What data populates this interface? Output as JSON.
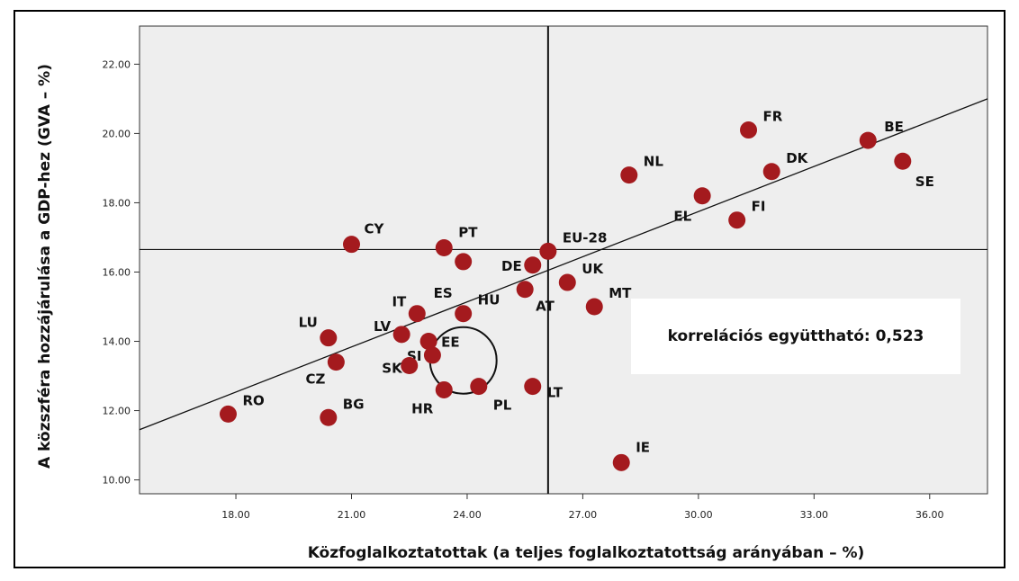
{
  "chart_data": {
    "type": "scatter",
    "xlabel": "Közfoglalkoztatottak (a teljes foglalkoztatottság arányában – %)",
    "ylabel": "A közszféra hozzájárulása a GDP-hez (GVA – %)",
    "xlim": [
      15.5,
      37.5
    ],
    "ylim": [
      9.6,
      23.1
    ],
    "x_ticks": [
      "18.00",
      "21.00",
      "24.00",
      "27.00",
      "30.00",
      "33.00",
      "36.00"
    ],
    "y_ticks": [
      "10.00",
      "12.00",
      "14.00",
      "16.00",
      "18.00",
      "20.00",
      "22.00"
    ],
    "grid": false,
    "reference_lines": {
      "x": 26.1,
      "y": 16.65
    },
    "fit_line": {
      "x": [
        15.5,
        37.5
      ],
      "y": [
        11.45,
        21.0
      ]
    },
    "highlight_circle": {
      "x": 23.9,
      "y": 13.45
    },
    "point_color": "#a41a1e",
    "background_color": "#eeeeee",
    "annotation": "korrelációs együttható: 0,523",
    "points": [
      {
        "label": "FR",
        "x": 31.3,
        "y": 20.1
      },
      {
        "label": "BE",
        "x": 34.4,
        "y": 19.8
      },
      {
        "label": "SE",
        "x": 35.3,
        "y": 19.2
      },
      {
        "label": "DK",
        "x": 31.9,
        "y": 18.9
      },
      {
        "label": "NL",
        "x": 28.2,
        "y": 18.8
      },
      {
        "label": "EL",
        "x": 30.1,
        "y": 18.2
      },
      {
        "label": "FI",
        "x": 31.0,
        "y": 17.5
      },
      {
        "label": "CY",
        "x": 21.0,
        "y": 16.8
      },
      {
        "label": "PT",
        "x": 23.4,
        "y": 16.7
      },
      {
        "label": "EU-28",
        "x": 26.1,
        "y": 16.6
      },
      {
        "label": "ES",
        "x": 23.9,
        "y": 16.3
      },
      {
        "label": "DE",
        "x": 25.7,
        "y": 16.2
      },
      {
        "label": "UK",
        "x": 26.6,
        "y": 15.7
      },
      {
        "label": "AT",
        "x": 25.5,
        "y": 15.5
      },
      {
        "label": "MT",
        "x": 27.3,
        "y": 15.0
      },
      {
        "label": "IT",
        "x": 22.7,
        "y": 14.8
      },
      {
        "label": "HU",
        "x": 23.9,
        "y": 14.8
      },
      {
        "label": "LV",
        "x": 22.3,
        "y": 14.2
      },
      {
        "label": "LU",
        "x": 20.4,
        "y": 14.1
      },
      {
        "label": "EE",
        "x": 23.0,
        "y": 14.0
      },
      {
        "label": "SI",
        "x": 23.1,
        "y": 13.6
      },
      {
        "label": "CZ",
        "x": 20.6,
        "y": 13.4
      },
      {
        "label": "SK",
        "x": 22.5,
        "y": 13.3
      },
      {
        "label": "PL",
        "x": 24.3,
        "y": 12.7
      },
      {
        "label": "LT",
        "x": 25.7,
        "y": 12.7
      },
      {
        "label": "HR",
        "x": 23.4,
        "y": 12.6
      },
      {
        "label": "RO",
        "x": 17.8,
        "y": 11.9
      },
      {
        "label": "BG",
        "x": 20.4,
        "y": 11.8
      },
      {
        "label": "IE",
        "x": 28.0,
        "y": 10.5
      }
    ]
  }
}
